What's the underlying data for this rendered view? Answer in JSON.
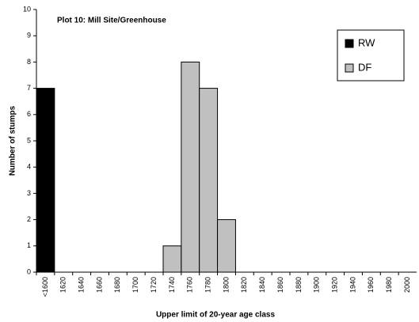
{
  "chart_data": {
    "type": "bar",
    "title": "Plot 10: Mill Site/Greenhouse",
    "x_label": "Upper limit of 20-year age class",
    "y_label": "Number of stumps",
    "categories": [
      "<1600",
      "1620",
      "1640",
      "1660",
      "1680",
      "1700",
      "1720",
      "1740",
      "1760",
      "1780",
      "1800",
      "1820",
      "1840",
      "1860",
      "1880",
      "1900",
      "1920",
      "1940",
      "1960",
      "1980",
      "2000"
    ],
    "series": [
      {
        "name": "RW",
        "color": "#000000",
        "values": [
          7,
          0,
          0,
          0,
          0,
          0,
          0,
          0,
          0,
          0,
          0,
          0,
          0,
          0,
          0,
          0,
          0,
          0,
          0,
          0,
          0
        ]
      },
      {
        "name": "DF",
        "color": "#c0c0c0",
        "values": [
          0,
          0,
          0,
          0,
          0,
          0,
          0,
          1,
          8,
          7,
          2,
          0,
          0,
          0,
          0,
          0,
          0,
          0,
          0,
          0,
          0
        ]
      }
    ],
    "ylim": [
      0,
      10
    ],
    "yticks": [
      0,
      1,
      2,
      3,
      4,
      5,
      6,
      7,
      8,
      9,
      10
    ],
    "legend": "top-right"
  }
}
